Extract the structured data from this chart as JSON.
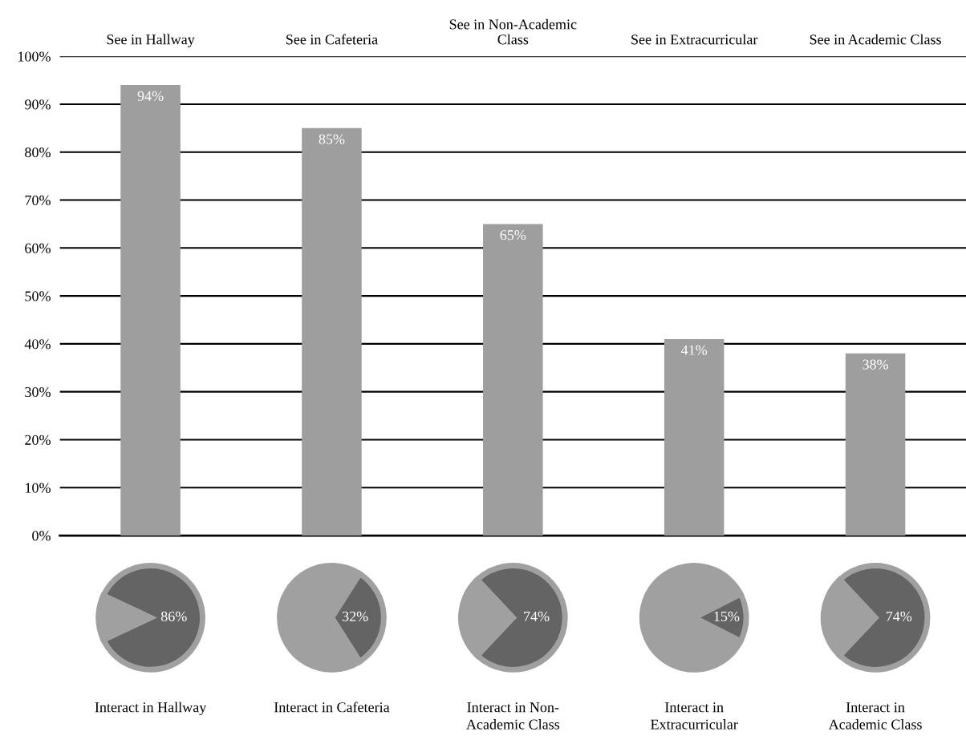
{
  "chart_data": [
    {
      "type": "bar",
      "categories": [
        "See in Hallway",
        "See in Cafeteria",
        "See in Non-Academic\nClass",
        "See in Extracurricular",
        "See in Academic Class"
      ],
      "values": [
        94,
        85,
        65,
        41,
        38
      ],
      "value_labels": [
        "94%",
        "85%",
        "65%",
        "41%",
        "38%"
      ],
      "color": "#9e9e9e",
      "ylim": [
        0,
        100
      ],
      "yticks": [
        {
          "value": 0,
          "label": "0%"
        },
        {
          "value": 10,
          "label": "10%"
        },
        {
          "value": 20,
          "label": "20%"
        },
        {
          "value": 30,
          "label": "30%"
        },
        {
          "value": 40,
          "label": "40%"
        },
        {
          "value": 50,
          "label": "50%"
        },
        {
          "value": 60,
          "label": "60%"
        },
        {
          "value": 70,
          "label": "70%"
        },
        {
          "value": 80,
          "label": "80%"
        },
        {
          "value": 90,
          "label": "90%"
        },
        {
          "value": 100,
          "label": "100%"
        }
      ],
      "grid": "y",
      "legend": false
    },
    {
      "type": "pie",
      "title": "Interact in Hallway",
      "categories": [
        null,
        null
      ],
      "values": [
        86,
        14
      ],
      "colors": [
        "#646464",
        "#a0a0a0"
      ],
      "value_labels": [
        "86%",
        null
      ]
    },
    {
      "type": "pie",
      "title": "Interact in Cafeteria",
      "categories": [
        null,
        null
      ],
      "values": [
        32,
        68
      ],
      "colors": [
        "#646464",
        "#a0a0a0"
      ],
      "value_labels": [
        "32%",
        null
      ]
    },
    {
      "type": "pie",
      "title": "Interact in Non-\nAcademic Class",
      "categories": [
        null,
        null
      ],
      "values": [
        74,
        26
      ],
      "colors": [
        "#646464",
        "#a0a0a0"
      ],
      "value_labels": [
        "74%",
        null
      ]
    },
    {
      "type": "pie",
      "title": "Interact in\nExtracurricular",
      "categories": [
        null,
        null
      ],
      "values": [
        15,
        85
      ],
      "colors": [
        "#646464",
        "#a0a0a0"
      ],
      "value_labels": [
        "15%",
        null
      ]
    },
    {
      "type": "pie",
      "title": "Interact in\nAcademic Class",
      "categories": [
        null,
        null
      ],
      "values": [
        74,
        26
      ],
      "colors": [
        "#646464",
        "#a0a0a0"
      ],
      "value_labels": [
        "74%",
        null
      ]
    }
  ]
}
